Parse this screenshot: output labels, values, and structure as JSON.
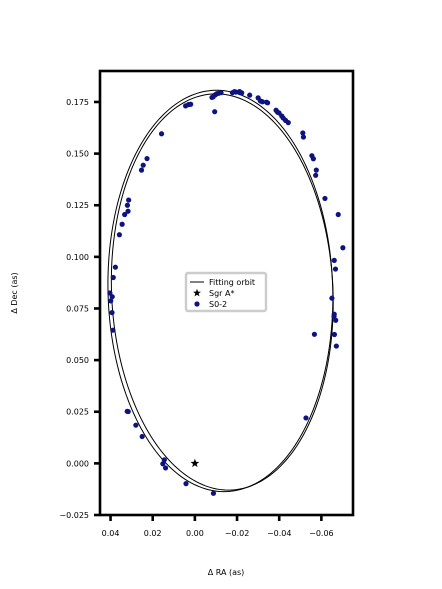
{
  "chart_data": {
    "type": "scatter",
    "title": "",
    "xlabel": "Δ RA (as)",
    "ylabel": "Δ Dec (as)",
    "xlim": [
      0.045,
      -0.075
    ],
    "ylim": [
      -0.025,
      0.19
    ],
    "x_ticks": [
      0.04,
      0.02,
      0.0,
      -0.02,
      -0.04,
      -0.06
    ],
    "x_tick_labels": [
      "0.04",
      "0.02",
      "0.00",
      "−0.02",
      "−0.04",
      "−0.06"
    ],
    "y_ticks": [
      -0.025,
      0.0,
      0.025,
      0.05,
      0.075,
      0.1,
      0.125,
      0.15,
      0.175
    ],
    "y_tick_labels": [
      "−0.025",
      "0.000",
      "0.025",
      "0.050",
      "0.075",
      "0.100",
      "0.125",
      "0.150",
      "0.175"
    ],
    "grid": false,
    "legend": {
      "placement": "center",
      "entries": [
        {
          "label": "Fitting orbit",
          "marker": "line",
          "color": "#000000"
        },
        {
          "label": "Sgr A*",
          "marker": "star",
          "color": "#000000"
        },
        {
          "label": "S0-2",
          "marker": "circle",
          "color": "#0d1380"
        }
      ]
    },
    "series": [
      {
        "name": "Fitting orbit",
        "kind": "orbit-ellipse",
        "color": "#000000",
        "orbits": [
          {
            "center": [
              -0.0121,
              0.0835
            ],
            "semi_axes": [
              0.0533,
              0.0972
            ],
            "tilt_deg": -1.5
          },
          {
            "center": [
              -0.013,
              0.083
            ],
            "semi_axes": [
              0.0525,
              0.096
            ],
            "tilt_deg": -2.5
          }
        ]
      },
      {
        "name": "Sgr A*",
        "kind": "star",
        "color": "#000000",
        "points": [
          [
            0.0,
            0.0
          ]
        ]
      },
      {
        "name": "S0-2",
        "kind": "scatter",
        "color": "#0d1380",
        "points": [
          [
            -0.0097,
            0.1785
          ],
          [
            -0.0104,
            0.179
          ],
          [
            -0.0112,
            0.1792
          ],
          [
            -0.0124,
            0.1795
          ],
          [
            -0.0087,
            0.1775
          ],
          [
            -0.0081,
            0.1772
          ],
          [
            -0.0178,
            0.1795
          ],
          [
            -0.0188,
            0.18
          ],
          [
            -0.0195,
            0.1798
          ],
          [
            -0.0212,
            0.18
          ],
          [
            -0.0214,
            0.1795
          ],
          [
            -0.0222,
            0.1794
          ],
          [
            -0.026,
            0.1783
          ],
          [
            -0.03,
            0.177
          ],
          [
            -0.0311,
            0.1755
          ],
          [
            -0.032,
            0.1751
          ],
          [
            -0.034,
            0.1749
          ],
          [
            -0.0345,
            0.1746
          ],
          [
            -0.0385,
            0.171
          ],
          [
            -0.0392,
            0.1701
          ],
          [
            -0.0399,
            0.1697
          ],
          [
            -0.0412,
            0.1682
          ],
          [
            -0.0419,
            0.1672
          ],
          [
            -0.043,
            0.1661
          ],
          [
            -0.0443,
            0.165
          ],
          [
            -0.0512,
            0.16
          ],
          [
            -0.0515,
            0.158
          ],
          [
            -0.0555,
            0.149
          ],
          [
            -0.0562,
            0.1475
          ],
          [
            -0.0576,
            0.142
          ],
          [
            -0.0573,
            0.1395
          ],
          [
            -0.0617,
            0.1283
          ],
          [
            -0.068,
            0.1205
          ],
          [
            -0.0702,
            0.1044
          ],
          [
            -0.0661,
            0.0983
          ],
          [
            -0.0667,
            0.0941
          ],
          [
            -0.065,
            0.08
          ],
          [
            -0.0661,
            0.0722
          ],
          [
            -0.066,
            0.0712
          ],
          [
            -0.0668,
            0.0693
          ],
          [
            -0.0662,
            0.0624
          ],
          [
            -0.0567,
            0.0625
          ],
          [
            -0.0671,
            0.0568
          ],
          [
            -0.0527,
            0.022
          ],
          [
            -0.0094,
            0.1703
          ],
          [
            0.0044,
            0.1731
          ],
          [
            0.0031,
            0.1737
          ],
          [
            0.002,
            0.1739
          ],
          [
            0.0158,
            0.1596
          ],
          [
            0.0227,
            0.1476
          ],
          [
            0.0245,
            0.1444
          ],
          [
            0.0253,
            0.142
          ],
          [
            0.0314,
            0.1275
          ],
          [
            0.032,
            0.125
          ],
          [
            0.0317,
            0.1221
          ],
          [
            0.0333,
            0.1205
          ],
          [
            0.0345,
            0.1158
          ],
          [
            0.0358,
            0.1107
          ],
          [
            0.0377,
            0.095
          ],
          [
            0.0387,
            0.09
          ],
          [
            0.0392,
            0.0807
          ],
          [
            0.0399,
            0.0787
          ],
          [
            0.0403,
            0.0825
          ],
          [
            0.0393,
            0.073
          ],
          [
            0.0389,
            0.0645
          ],
          [
            0.0316,
            0.0251
          ],
          [
            0.0321,
            0.0252
          ],
          [
            0.028,
            0.0185
          ],
          [
            0.025,
            0.013
          ],
          [
            0.0145,
            0.0017
          ],
          [
            0.0152,
            -0.0002
          ],
          [
            0.0139,
            -0.0022
          ],
          [
            0.0042,
            -0.0098
          ],
          [
            -0.0088,
            -0.0145
          ]
        ]
      }
    ]
  }
}
